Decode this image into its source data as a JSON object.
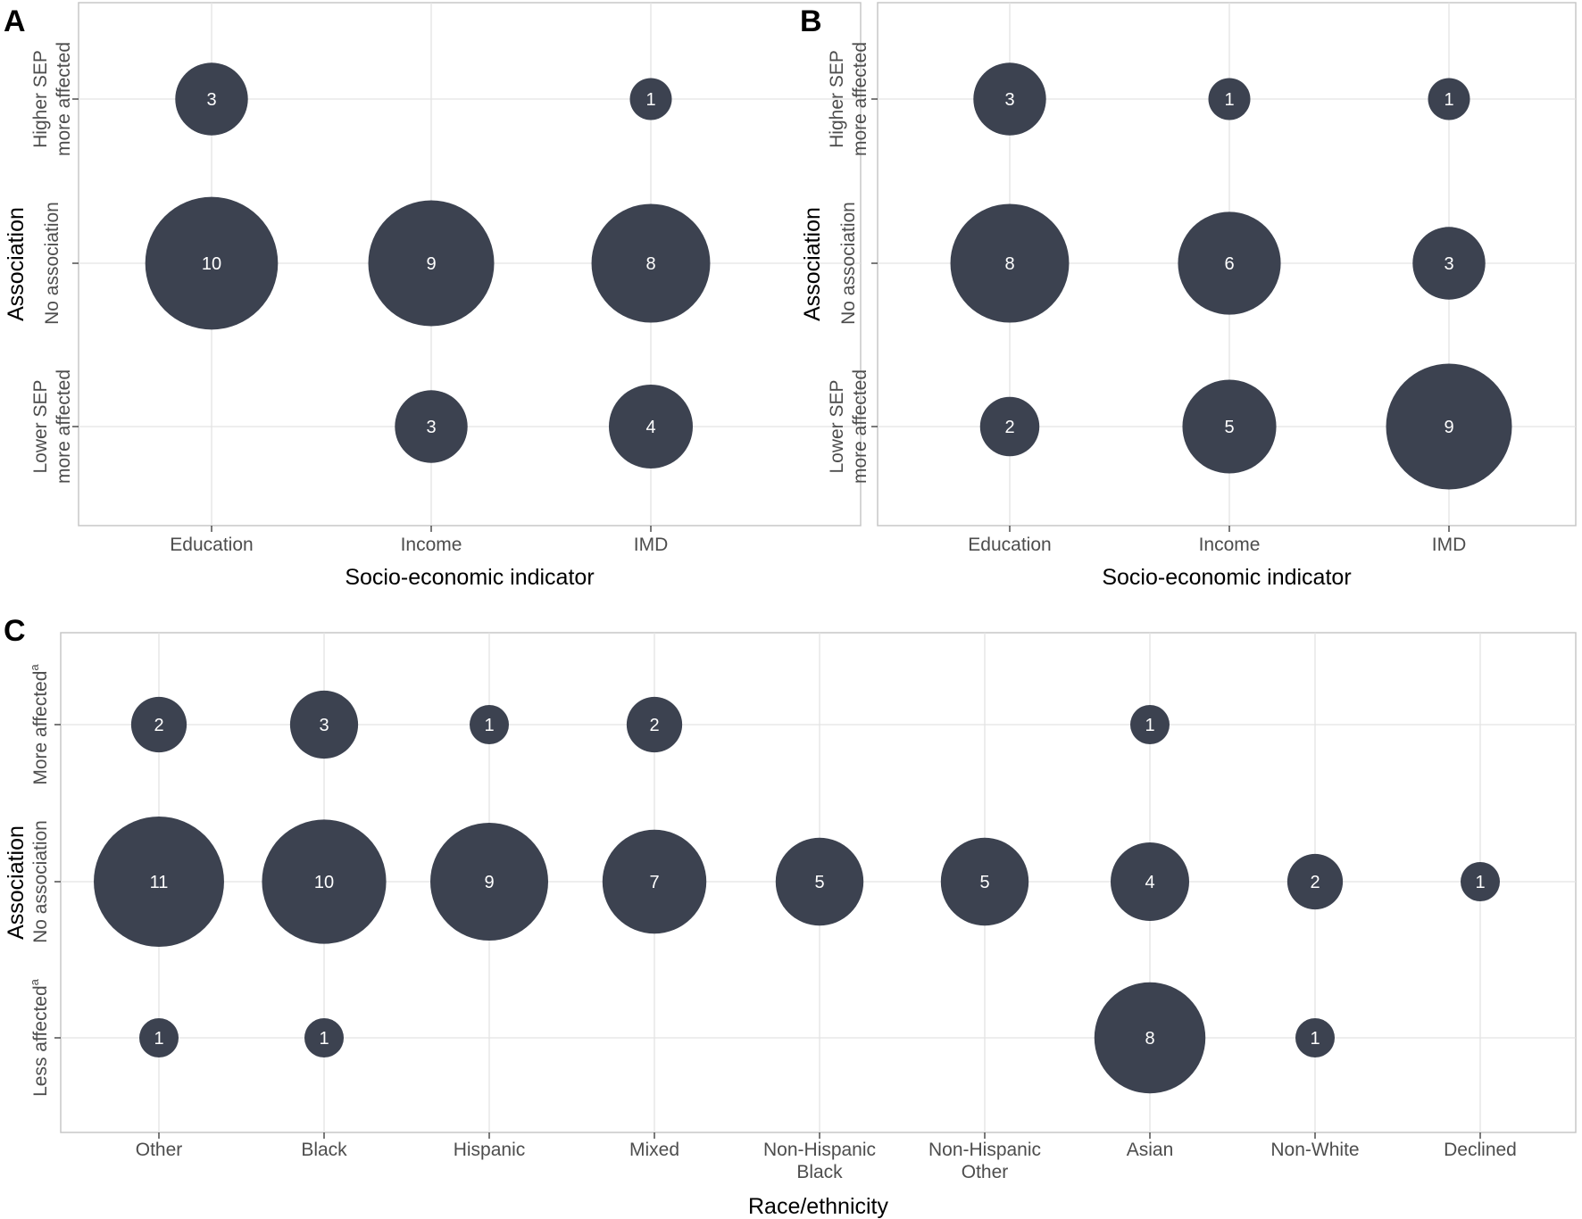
{
  "chart_data": [
    {
      "panel": "A",
      "type": "bubble",
      "xlabel": "Socio-economic indicator",
      "ylabel": "Association",
      "categories": [
        "Education",
        "Income",
        "IMD"
      ],
      "y_categories": [
        [
          "Higher SEP",
          "more affected"
        ],
        [
          "No association"
        ],
        [
          "Lower SEP",
          "more affected"
        ]
      ],
      "points": [
        {
          "x": "Education",
          "y": 0,
          "value": 3
        },
        {
          "x": "IMD",
          "y": 0,
          "value": 1
        },
        {
          "x": "Education",
          "y": 1,
          "value": 10
        },
        {
          "x": "Income",
          "y": 1,
          "value": 9
        },
        {
          "x": "IMD",
          "y": 1,
          "value": 8
        },
        {
          "x": "Income",
          "y": 2,
          "value": 3
        },
        {
          "x": "IMD",
          "y": 2,
          "value": 4
        }
      ]
    },
    {
      "panel": "B",
      "type": "bubble",
      "xlabel": "Socio-economic indicator",
      "ylabel": "Association",
      "categories": [
        "Education",
        "Income",
        "IMD"
      ],
      "y_categories": [
        [
          "Higher SEP",
          "more affected"
        ],
        [
          "No association"
        ],
        [
          "Lower SEP",
          "more affected"
        ]
      ],
      "points": [
        {
          "x": "Education",
          "y": 0,
          "value": 3
        },
        {
          "x": "Income",
          "y": 0,
          "value": 1
        },
        {
          "x": "IMD",
          "y": 0,
          "value": 1
        },
        {
          "x": "Education",
          "y": 1,
          "value": 8
        },
        {
          "x": "Income",
          "y": 1,
          "value": 6
        },
        {
          "x": "IMD",
          "y": 1,
          "value": 3
        },
        {
          "x": "Education",
          "y": 2,
          "value": 2
        },
        {
          "x": "Income",
          "y": 2,
          "value": 5
        },
        {
          "x": "IMD",
          "y": 2,
          "value": 9
        }
      ]
    },
    {
      "panel": "C",
      "type": "bubble",
      "xlabel": "Race/ethnicity",
      "ylabel": "Association",
      "categories": [
        [
          "Other"
        ],
        [
          "Black"
        ],
        [
          "Hispanic"
        ],
        [
          "Mixed"
        ],
        [
          "Non-Hispanic",
          "Black"
        ],
        [
          "Non-Hispanic",
          "Other"
        ],
        [
          "Asian"
        ],
        [
          "Non-White"
        ],
        [
          "Declined"
        ]
      ],
      "y_categories": [
        [
          "More affected",
          "a"
        ],
        [
          "No association"
        ],
        [
          "Less affected",
          "a"
        ]
      ],
      "points": [
        {
          "x": 0,
          "y": 0,
          "value": 2
        },
        {
          "x": 1,
          "y": 0,
          "value": 3
        },
        {
          "x": 2,
          "y": 0,
          "value": 1
        },
        {
          "x": 3,
          "y": 0,
          "value": 2
        },
        {
          "x": 6,
          "y": 0,
          "value": 1
        },
        {
          "x": 0,
          "y": 1,
          "value": 11
        },
        {
          "x": 1,
          "y": 1,
          "value": 10
        },
        {
          "x": 2,
          "y": 1,
          "value": 9
        },
        {
          "x": 3,
          "y": 1,
          "value": 7
        },
        {
          "x": 4,
          "y": 1,
          "value": 5
        },
        {
          "x": 5,
          "y": 1,
          "value": 5
        },
        {
          "x": 6,
          "y": 1,
          "value": 4
        },
        {
          "x": 7,
          "y": 1,
          "value": 2
        },
        {
          "x": 8,
          "y": 1,
          "value": 1
        },
        {
          "x": 0,
          "y": 2,
          "value": 1
        },
        {
          "x": 1,
          "y": 2,
          "value": 1
        },
        {
          "x": 6,
          "y": 2,
          "value": 8
        },
        {
          "x": 7,
          "y": 2,
          "value": 1
        }
      ]
    }
  ],
  "colors": {
    "bubble": "#3c4250",
    "label": "#ffffff"
  }
}
